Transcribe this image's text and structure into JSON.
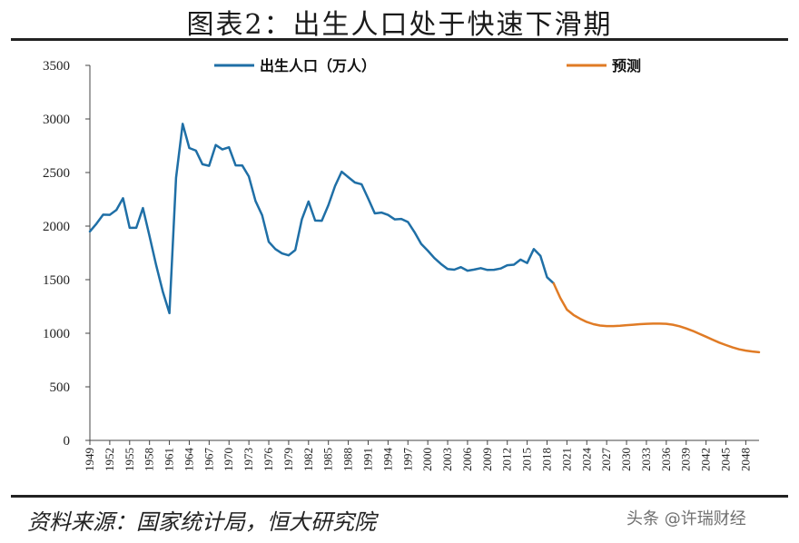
{
  "header": {
    "title": "图表2：出生人口处于快速下滑期"
  },
  "footer": {
    "source": "资料来源：国家统计局，恒大研究院",
    "watermark": "头条 @许瑞财经"
  },
  "chart_data": {
    "type": "line",
    "title": "图表2：出生人口处于快速下滑期",
    "xlabel": "",
    "ylabel": "",
    "ylim": [
      0,
      3500
    ],
    "xlim": [
      1949,
      2050
    ],
    "yticks": [
      0,
      500,
      1000,
      1500,
      2000,
      2500,
      3000,
      3500
    ],
    "xticks": [
      1949,
      1952,
      1955,
      1958,
      1961,
      1964,
      1967,
      1970,
      1973,
      1976,
      1979,
      1982,
      1985,
      1988,
      1991,
      1994,
      1997,
      2000,
      2003,
      2006,
      2009,
      2012,
      2015,
      2018,
      2021,
      2024,
      2027,
      2030,
      2033,
      2036,
      2039,
      2042,
      2045,
      2048
    ],
    "grid": false,
    "legend_position": "top",
    "series": [
      {
        "name": "出生人口（万人）",
        "color": "#1f6fa6",
        "x": [
          1949,
          1950,
          1951,
          1952,
          1953,
          1954,
          1955,
          1956,
          1957,
          1958,
          1959,
          1960,
          1961,
          1962,
          1963,
          1964,
          1965,
          1966,
          1967,
          1968,
          1969,
          1970,
          1971,
          1972,
          1973,
          1974,
          1975,
          1976,
          1977,
          1978,
          1979,
          1980,
          1981,
          1982,
          1983,
          1984,
          1985,
          1986,
          1987,
          1988,
          1989,
          1990,
          1991,
          1992,
          1993,
          1994,
          1995,
          1996,
          1997,
          1998,
          1999,
          2000,
          2001,
          2002,
          2003,
          2004,
          2005,
          2006,
          2007,
          2008,
          2009,
          2010,
          2011,
          2012,
          2013,
          2014,
          2015,
          2016,
          2017,
          2018,
          2019
        ],
        "values": [
          1950,
          2023,
          2107,
          2105,
          2151,
          2260,
          1984,
          1984,
          2169,
          1906,
          1635,
          1389,
          1187,
          2451,
          2954,
          2729,
          2704,
          2577,
          2563,
          2757,
          2715,
          2736,
          2567,
          2566,
          2463,
          2235,
          2102,
          1853,
          1786,
          1745,
          1727,
          1776,
          2064,
          2230,
          2052,
          2050,
          2196,
          2374,
          2508,
          2457,
          2407,
          2391,
          2258,
          2119,
          2126,
          2104,
          2063,
          2067,
          2038,
          1942,
          1834,
          1771,
          1702,
          1647,
          1599,
          1593,
          1617,
          1584,
          1594,
          1608,
          1591,
          1592,
          1604,
          1635,
          1640,
          1687,
          1655,
          1786,
          1723,
          1523,
          1465
        ]
      },
      {
        "name": "预测",
        "color": "#e07b25",
        "x": [
          2019,
          2020,
          2021,
          2022,
          2023,
          2024,
          2025,
          2026,
          2027,
          2028,
          2029,
          2030,
          2031,
          2032,
          2033,
          2034,
          2035,
          2036,
          2037,
          2038,
          2039,
          2040,
          2041,
          2042,
          2043,
          2044,
          2045,
          2046,
          2047,
          2048,
          2049,
          2050
        ],
        "values": [
          1465,
          1330,
          1220,
          1170,
          1135,
          1105,
          1085,
          1072,
          1067,
          1067,
          1070,
          1075,
          1080,
          1085,
          1088,
          1090,
          1090,
          1088,
          1080,
          1065,
          1045,
          1022,
          995,
          968,
          940,
          913,
          890,
          868,
          850,
          838,
          830,
          823
        ]
      }
    ]
  }
}
